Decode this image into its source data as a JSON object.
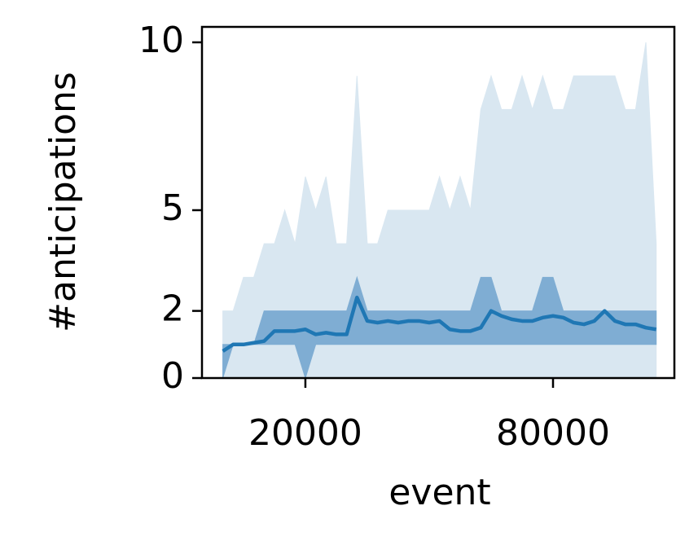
{
  "chart_data": {
    "type": "line",
    "x_label": "event",
    "y_label": "#anticipations",
    "x": [
      0,
      2500,
      5000,
      7500,
      10000,
      12500,
      15000,
      17500,
      20000,
      22500,
      25000,
      27500,
      30000,
      32500,
      35000,
      37500,
      40000,
      42500,
      45000,
      47500,
      50000,
      52500,
      55000,
      57500,
      60000,
      62500,
      65000,
      67500,
      70000,
      72500,
      75000,
      77500,
      80000,
      82500,
      85000,
      87500,
      90000,
      92500,
      95000,
      97500,
      100000,
      102500,
      105000
    ],
    "bands": [
      {
        "color": "#d9e7f1",
        "lower": [
          0,
          0,
          0,
          0,
          0,
          0,
          0,
          0,
          0,
          0,
          0,
          0,
          0,
          0,
          0,
          0,
          0,
          0,
          0,
          0,
          0,
          0,
          0,
          0,
          0,
          0,
          0,
          0,
          0,
          0,
          0,
          0,
          0,
          0,
          0,
          0,
          0,
          0,
          0,
          0,
          0,
          0,
          0
        ],
        "upper": [
          2,
          2,
          3,
          3,
          4,
          4,
          5,
          4,
          6,
          5,
          6,
          4,
          4,
          9,
          4,
          4,
          5,
          5,
          5,
          5,
          5,
          6,
          5,
          6,
          5,
          8,
          9,
          8,
          8,
          9,
          8,
          9,
          8,
          8,
          9,
          9,
          9,
          9,
          9,
          8,
          8,
          10,
          4
        ]
      },
      {
        "color": "#7fadd3",
        "lower": [
          0,
          1,
          1,
          1,
          1,
          1,
          1,
          1,
          0,
          1,
          1,
          1,
          1,
          1,
          1,
          1,
          1,
          1,
          1,
          1,
          1,
          1,
          1,
          1,
          1,
          1,
          1,
          1,
          1,
          1,
          1,
          1,
          1,
          1,
          1,
          1,
          1,
          1,
          1,
          1,
          1,
          1,
          1
        ],
        "upper": [
          1,
          1,
          1,
          1,
          2,
          2,
          2,
          2,
          2,
          2,
          2,
          2,
          2,
          3,
          2,
          2,
          2,
          2,
          2,
          2,
          2,
          2,
          2,
          2,
          2,
          3,
          3,
          2,
          2,
          2,
          2,
          3,
          3,
          2,
          2,
          2,
          2,
          2,
          2,
          2,
          2,
          2,
          2
        ]
      }
    ],
    "series": [
      {
        "color": "#1f77b4",
        "values": [
          0.8,
          1.0,
          1.0,
          1.05,
          1.1,
          1.4,
          1.4,
          1.4,
          1.45,
          1.3,
          1.35,
          1.3,
          1.3,
          2.4,
          1.7,
          1.65,
          1.7,
          1.65,
          1.7,
          1.7,
          1.65,
          1.7,
          1.45,
          1.4,
          1.4,
          1.5,
          2.0,
          1.85,
          1.75,
          1.7,
          1.7,
          1.8,
          1.85,
          1.8,
          1.65,
          1.6,
          1.7,
          2.0,
          1.7,
          1.6,
          1.6,
          1.5,
          1.45
        ]
      }
    ],
    "xlim": [
      -5050,
      109400
    ],
    "ylim": [
      0,
      10.46
    ],
    "xticks": [
      20000,
      80000
    ],
    "yticks": [
      0,
      2,
      5,
      10
    ]
  }
}
